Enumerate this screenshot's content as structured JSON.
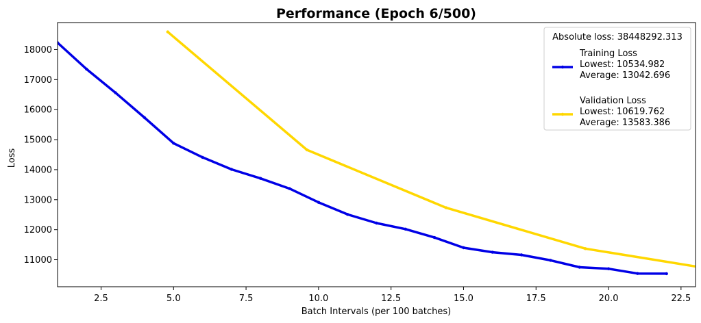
{
  "chart_data": {
    "type": "line",
    "title": "Performance (Epoch 6/500)",
    "xlabel": "Batch Intervals (per 100 batches)",
    "ylabel": "Loss",
    "xlim": [
      1,
      23
    ],
    "ylim": [
      10100,
      18900
    ],
    "xticks": [
      2.5,
      5.0,
      7.5,
      10.0,
      12.5,
      15.0,
      17.5,
      20.0,
      22.5
    ],
    "xtick_labels": [
      "2.5",
      "5.0",
      "7.5",
      "10.0",
      "12.5",
      "15.0",
      "17.5",
      "20.0",
      "22.5"
    ],
    "yticks": [
      11000,
      12000,
      13000,
      14000,
      15000,
      16000,
      17000,
      18000
    ],
    "ytick_labels": [
      "11000",
      "12000",
      "13000",
      "14000",
      "15000",
      "16000",
      "17000",
      "18000"
    ],
    "grid": false,
    "legend_position": "top-right",
    "legend_title": "Absolute loss: 38448292.313",
    "series": [
      {
        "name": "Training Loss",
        "legend_lines": [
          "Training Loss",
          "Lowest: 10534.982",
          "Average: 13042.696"
        ],
        "color": "#0000e6",
        "x": [
          1,
          2,
          3,
          4,
          5,
          6,
          7,
          8,
          9,
          10,
          11,
          12,
          13,
          14,
          15,
          16,
          17,
          18,
          19,
          20,
          21,
          22
        ],
        "values": [
          18230,
          17350,
          16560,
          15730,
          14880,
          14410,
          14010,
          13710,
          13370,
          12910,
          12510,
          12220,
          12020,
          11740,
          11400,
          11250,
          11160,
          10980,
          10750,
          10700,
          10540,
          10535
        ]
      },
      {
        "name": "Validation Loss",
        "legend_lines": [
          "Validation Loss",
          "Lowest: 10619.762",
          "Average: 13583.386"
        ],
        "color": "#ffd700",
        "x": [
          4.8,
          9.6,
          14.4,
          19.2,
          24.0
        ],
        "values": [
          18590,
          14660,
          12730,
          11370,
          10620
        ]
      }
    ]
  }
}
